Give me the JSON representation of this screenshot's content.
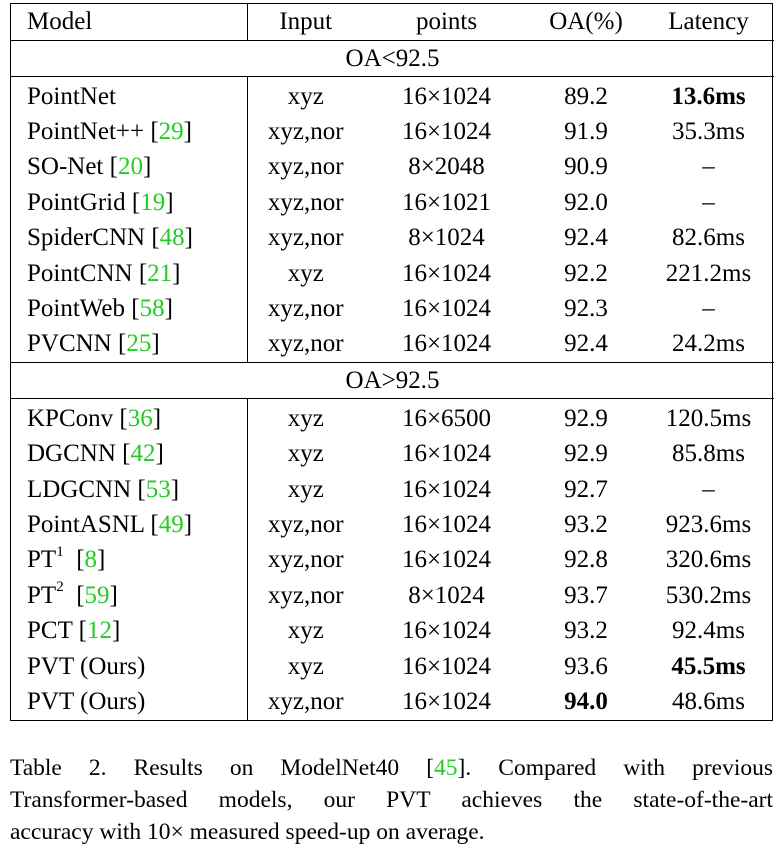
{
  "table": {
    "headers": [
      "Model",
      "Input",
      "points",
      "OA(%)",
      "Latency"
    ],
    "sections": [
      {
        "label": "OA<92.5",
        "rows": [
          {
            "model": "PointNet",
            "sup": "",
            "cite": "",
            "input": "xyz",
            "points": "16×1024",
            "oa": "89.2",
            "latency": "13.6ms",
            "bold_oa": false,
            "bold_latency": true
          },
          {
            "model": "PointNet++",
            "sup": "",
            "cite": "29",
            "input": "xyz,nor",
            "points": "16×1024",
            "oa": "91.9",
            "latency": "35.3ms",
            "bold_oa": false,
            "bold_latency": false
          },
          {
            "model": "SO-Net",
            "sup": "",
            "cite": "20",
            "input": "xyz,nor",
            "points": "8×2048",
            "oa": "90.9",
            "latency": "–",
            "bold_oa": false,
            "bold_latency": false
          },
          {
            "model": "PointGrid",
            "sup": "",
            "cite": "19",
            "input": "xyz,nor",
            "points": "16×1021",
            "oa": "92.0",
            "latency": "–",
            "bold_oa": false,
            "bold_latency": false
          },
          {
            "model": "SpiderCNN",
            "sup": "",
            "cite": "48",
            "input": "xyz,nor",
            "points": "8×1024",
            "oa": "92.4",
            "latency": "82.6ms",
            "bold_oa": false,
            "bold_latency": false
          },
          {
            "model": "PointCNN",
            "sup": "",
            "cite": "21",
            "input": "xyz",
            "points": "16×1024",
            "oa": "92.2",
            "latency": "221.2ms",
            "bold_oa": false,
            "bold_latency": false
          },
          {
            "model": "PointWeb",
            "sup": "",
            "cite": "58",
            "input": "xyz,nor",
            "points": "16×1024",
            "oa": "92.3",
            "latency": "–",
            "bold_oa": false,
            "bold_latency": false
          },
          {
            "model": "PVCNN",
            "sup": "",
            "cite": "25",
            "input": "xyz,nor",
            "points": "16×1024",
            "oa": "92.4",
            "latency": "24.2ms",
            "bold_oa": false,
            "bold_latency": false
          }
        ]
      },
      {
        "label": "OA>92.5",
        "rows": [
          {
            "model": "KPConv",
            "sup": "",
            "cite": "36",
            "input": "xyz",
            "points": "16×6500",
            "oa": "92.9",
            "latency": "120.5ms",
            "bold_oa": false,
            "bold_latency": false
          },
          {
            "model": "DGCNN",
            "sup": "",
            "cite": "42",
            "input": "xyz",
            "points": "16×1024",
            "oa": "92.9",
            "latency": "85.8ms",
            "bold_oa": false,
            "bold_latency": false
          },
          {
            "model": "LDGCNN",
            "sup": "",
            "cite": "53",
            "input": "xyz",
            "points": "16×1024",
            "oa": "92.7",
            "latency": "–",
            "bold_oa": false,
            "bold_latency": false
          },
          {
            "model": "PointASNL",
            "sup": "",
            "cite": "49",
            "input": "xyz,nor",
            "points": "16×1024",
            "oa": "93.2",
            "latency": "923.6ms",
            "bold_oa": false,
            "bold_latency": false
          },
          {
            "model": "PT",
            "sup": "1",
            "cite": "8",
            "input": "xyz,nor",
            "points": "16×1024",
            "oa": "92.8",
            "latency": "320.6ms",
            "bold_oa": false,
            "bold_latency": false
          },
          {
            "model": "PT",
            "sup": "2",
            "cite": "59",
            "input": "xyz,nor",
            "points": "8×1024",
            "oa": "93.7",
            "latency": "530.2ms",
            "bold_oa": false,
            "bold_latency": false
          },
          {
            "model": "PCT",
            "sup": "",
            "cite": "12",
            "input": "xyz",
            "points": "16×1024",
            "oa": "93.2",
            "latency": "92.4ms",
            "bold_oa": false,
            "bold_latency": false
          },
          {
            "model": "PVT (Ours)",
            "sup": "",
            "cite": "",
            "input": "xyz",
            "points": "16×1024",
            "oa": "93.6",
            "latency": "45.5ms",
            "bold_oa": false,
            "bold_latency": true
          },
          {
            "model": "PVT (Ours)",
            "sup": "",
            "cite": "",
            "input": "xyz,nor",
            "points": "16×1024",
            "oa": "94.0",
            "latency": "48.6ms",
            "bold_oa": true,
            "bold_latency": false
          }
        ]
      }
    ]
  },
  "caption": {
    "lines": [
      {
        "segments": [
          {
            "text": "Table 2. Results on ModelNet40 [",
            "cite": false
          },
          {
            "text": "45",
            "cite": true
          },
          {
            "text": "].  Compared with previous",
            "cite": false
          }
        ]
      },
      {
        "segments": [
          {
            "text": "Transformer-based models, our PVT achieves the state-of-the-art",
            "cite": false
          }
        ]
      },
      {
        "segments": [
          {
            "text": "accuracy with 10× measured speed-up on average.",
            "cite": false
          }
        ]
      }
    ]
  },
  "colors": {
    "citation": "#22cc22",
    "text": "#000000"
  }
}
